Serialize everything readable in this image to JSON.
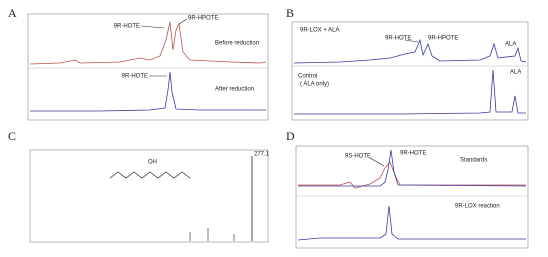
{
  "panels": [
    {
      "label": "A",
      "annotations": [
        "9R-HOTE",
        "9R-HPOTE",
        "Before reduction",
        "9R-HOTE",
        "After reduction"
      ]
    },
    {
      "label": "B",
      "annotations": [
        "9R-LOX + ALA",
        "9R-HOTE",
        "9R-HPOTE",
        "ALA",
        "Control",
        "( ALA only)",
        "ALA"
      ]
    },
    {
      "label": "C",
      "annotations": [
        "OH",
        "277.1"
      ]
    },
    {
      "label": "D",
      "annotations": [
        "Standards",
        "9S-HOTE",
        "9R-HOTE",
        "9R-LOX reaction"
      ]
    }
  ]
}
